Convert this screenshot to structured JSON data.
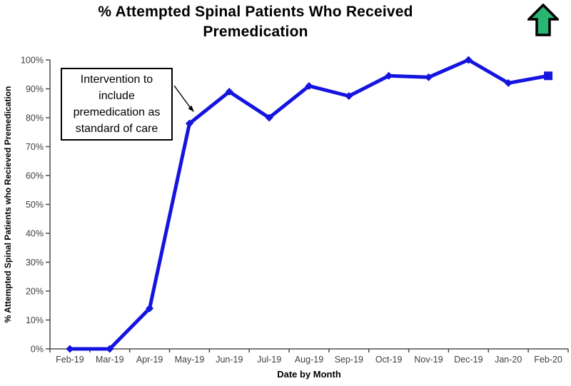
{
  "title": {
    "line1": "% Attempted Spinal Patients Who Received",
    "line2": "Premedication"
  },
  "icons": {
    "up_arrow": {
      "name": "green-up-arrow",
      "fill": "#2BB573",
      "stroke": "#000000"
    }
  },
  "annotation": {
    "text": "Intervention to include premedication as standard of care",
    "lines": [
      "Intervention to",
      "include",
      "premedication as",
      "standard of care"
    ],
    "points_to": "May-19"
  },
  "chart_data": {
    "type": "line",
    "title": "% Attempted Spinal Patients Who Received Premedication",
    "xlabel": "Date by Month",
    "ylabel": "% Attempted Spinal Patients who Recieved Premedication",
    "categories": [
      "Feb-19",
      "Mar-19",
      "Apr-19",
      "May-19",
      "Jun-19",
      "Jul-19",
      "Aug-19",
      "Sep-19",
      "Oct-19",
      "Nov-19",
      "Dec-19",
      "Jan-20",
      "Feb-20"
    ],
    "series": [
      {
        "name": "% attempted spinal patients who received premedication",
        "values": [
          0,
          0,
          14,
          78,
          89,
          80,
          91,
          87.5,
          94.5,
          94,
          100,
          92,
          94.5
        ]
      }
    ],
    "ylim": [
      0,
      100
    ],
    "ytick_labels": [
      "0%",
      "10%",
      "20%",
      "30%",
      "40%",
      "50%",
      "60%",
      "70%",
      "80%",
      "90%",
      "100%"
    ],
    "grid": false,
    "legend": "none",
    "line_color": "#1414E0",
    "marker": "diamond",
    "last_marker": "square",
    "axis_color": "#4d4d4d",
    "tick_label_color": "#3f3f3f"
  }
}
